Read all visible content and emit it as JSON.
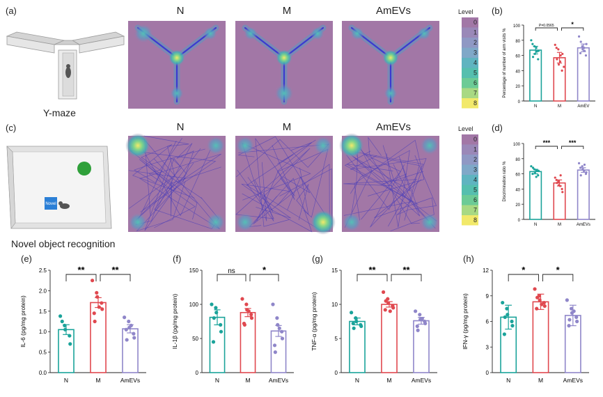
{
  "colors": {
    "N": "#1aa39a",
    "M": "#e0484f",
    "AmEVs": "#8f86c9",
    "heat_bg": "#a277a6",
    "track": "#3a3ad0"
  },
  "top_row": {
    "panel_a_label": "(a)",
    "panel_b_label": "(b)",
    "maze_caption": "Y-maze",
    "heatmap_titles": [
      "N",
      "M",
      "AmEVs"
    ],
    "legend_title": "Level",
    "legend_levels": [
      "0",
      "1",
      "2",
      "3",
      "4",
      "5",
      "6",
      "7",
      "8"
    ]
  },
  "mid_row": {
    "panel_c_label": "(c)",
    "panel_d_label": "(d)",
    "novel_box_label": "Novel",
    "caption": "Novel object recognition",
    "heatmap_titles": [
      "N",
      "M",
      "AmEVs"
    ],
    "legend_title": "Level",
    "legend_levels": [
      "0",
      "1",
      "2",
      "3",
      "4",
      "5",
      "6",
      "7",
      "8"
    ]
  },
  "chart_data": [
    {
      "id": "b",
      "type": "bar",
      "categories": [
        "N",
        "M",
        "AmEV"
      ],
      "ylabel": "Percentage of number of arm visits %",
      "ylim": [
        0,
        100
      ],
      "yticks": [
        "0",
        "20",
        "40",
        "60",
        "80",
        "100"
      ],
      "values": [
        67,
        57,
        70
      ],
      "errors": [
        5,
        7,
        5
      ],
      "points": [
        [
          80,
          72,
          62,
          55,
          66,
          75,
          58,
          70,
          65
        ],
        [
          74,
          68,
          48,
          40,
          62,
          70,
          55,
          52,
          60,
          45
        ],
        [
          85,
          72,
          68,
          60,
          75,
          63,
          78,
          70,
          66
        ]
      ],
      "sig": [
        {
          "from": 0,
          "to": 1,
          "label": "P=0.0565"
        },
        {
          "from": 1,
          "to": 2,
          "label": "*"
        }
      ]
    },
    {
      "id": "d",
      "type": "bar",
      "categories": [
        "N",
        "M",
        "AmEVs"
      ],
      "ylabel": "Discrimination ratio %",
      "ylim": [
        0,
        100
      ],
      "yticks": [
        "0",
        "20",
        "40",
        "60",
        "80",
        "100"
      ],
      "values": [
        63,
        48,
        65
      ],
      "errors": [
        3,
        4,
        3
      ],
      "points": [
        [
          70,
          66,
          62,
          58,
          64,
          60,
          68,
          56,
          65
        ],
        [
          55,
          50,
          45,
          40,
          36,
          52,
          48,
          44,
          58
        ],
        [
          74,
          70,
          66,
          60,
          62,
          68,
          58,
          64,
          72
        ]
      ],
      "sig": [
        {
          "from": 0,
          "to": 1,
          "label": "***"
        },
        {
          "from": 1,
          "to": 2,
          "label": "***"
        }
      ]
    },
    {
      "id": "e",
      "panel_label": "(e)",
      "type": "bar",
      "categories": [
        "N",
        "M",
        "AmEVs"
      ],
      "ylabel": "IL-6 (pg/mg protein)",
      "ylim": [
        0,
        2.5
      ],
      "yticks": [
        "0.0",
        "0.5",
        "1.0",
        "1.5",
        "2.0",
        "2.5"
      ],
      "values": [
        1.05,
        1.71,
        1.07
      ],
      "errors": [
        0.12,
        0.12,
        0.1
      ],
      "points": [
        [
          1.38,
          1.15,
          1.05,
          0.9,
          0.7,
          1.25
        ],
        [
          2.25,
          1.95,
          1.85,
          1.7,
          1.55,
          1.45,
          1.25,
          1.6
        ],
        [
          1.35,
          1.25,
          1.1,
          0.95,
          0.85,
          1.05,
          0.8,
          1.15
        ]
      ],
      "sig": [
        {
          "from": 0,
          "to": 1,
          "label": "**"
        },
        {
          "from": 1,
          "to": 2,
          "label": "**"
        }
      ]
    },
    {
      "id": "f",
      "panel_label": "(f)",
      "type": "bar",
      "categories": [
        "N",
        "M",
        "AmEVs"
      ],
      "ylabel": "IL-1β (pg/mg protein)",
      "ylim": [
        0,
        150
      ],
      "yticks": [
        "0",
        "50",
        "100",
        "150"
      ],
      "values": [
        81,
        88,
        61
      ],
      "errors": [
        11,
        6,
        8
      ],
      "points": [
        [
          100,
          95,
          88,
          70,
          60,
          45,
          80
        ],
        [
          108,
          100,
          92,
          85,
          80,
          72,
          70,
          90
        ],
        [
          100,
          80,
          70,
          60,
          50,
          40,
          30,
          65
        ]
      ],
      "sig": [
        {
          "from": 0,
          "to": 1,
          "label": "ns"
        },
        {
          "from": 1,
          "to": 2,
          "label": "*"
        }
      ]
    },
    {
      "id": "g",
      "panel_label": "(g)",
      "type": "bar",
      "categories": [
        "N",
        "M",
        "AmEVs"
      ],
      "ylabel": "TNF-α (pg/mg protein)",
      "ylim": [
        0,
        15
      ],
      "yticks": [
        "0",
        "5",
        "10",
        "15"
      ],
      "values": [
        7.5,
        10.0,
        7.6
      ],
      "errors": [
        0.5,
        0.4,
        0.5
      ],
      "points": [
        [
          8.8,
          8.0,
          7.5,
          7.0,
          6.8,
          7.2,
          6.5
        ],
        [
          11.8,
          10.8,
          10.2,
          9.8,
          9.5,
          9.2,
          10.5,
          9.0
        ],
        [
          9.0,
          8.5,
          7.8,
          7.5,
          7.2,
          6.8,
          6.2,
          7.9
        ]
      ],
      "sig": [
        {
          "from": 0,
          "to": 1,
          "label": "**"
        },
        {
          "from": 1,
          "to": 2,
          "label": "**"
        }
      ]
    },
    {
      "id": "h",
      "panel_label": "(h)",
      "type": "bar",
      "categories": [
        "N",
        "M",
        "AmEVs"
      ],
      "ylabel": "IFN-γ (pg/mg protein)",
      "ylim": [
        0,
        12
      ],
      "yticks": [
        "0",
        "3",
        "6",
        "9",
        "12"
      ],
      "values": [
        6.5,
        8.3,
        6.7
      ],
      "errors": [
        1.4,
        0.9,
        1.2
      ],
      "points": [
        [
          8.2,
          7.5,
          6.8,
          6.0,
          5.5,
          4.5,
          6.5
        ],
        [
          9.8,
          9.0,
          8.5,
          8.2,
          7.8,
          7.5,
          8.8,
          8.0
        ],
        [
          8.5,
          7.5,
          7.0,
          6.5,
          6.0,
          5.5,
          6.2,
          7.2
        ]
      ],
      "sig": [
        {
          "from": 0,
          "to": 1,
          "label": "*"
        },
        {
          "from": 1,
          "to": 2,
          "label": "*"
        }
      ]
    }
  ]
}
